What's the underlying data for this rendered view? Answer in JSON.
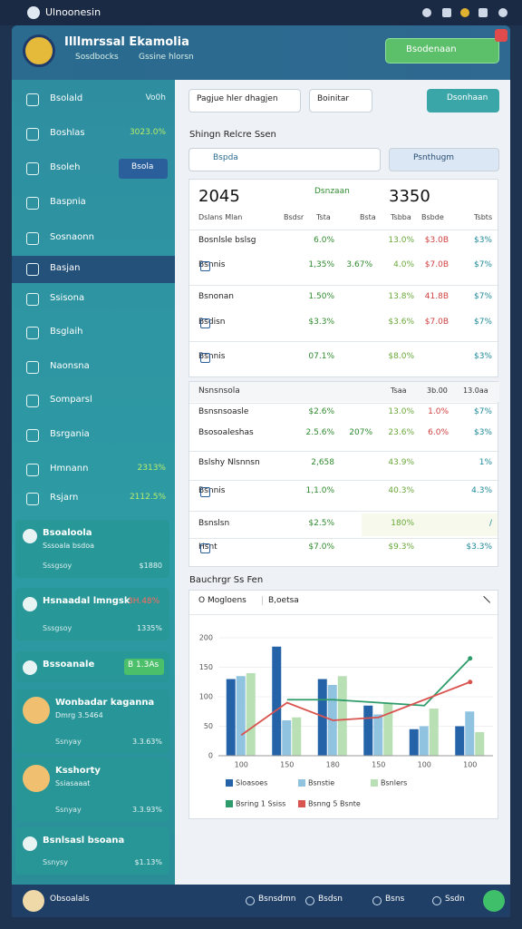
{
  "status_bar": {
    "title": "Ulnoonesin"
  },
  "header": {
    "title": "Illlmrssal Ekamolia",
    "links": [
      "Sosdbocks",
      "Gssine hlorsn"
    ],
    "button": "Bsodenaan"
  },
  "sidebar": {
    "items": [
      {
        "label": "Bsolald",
        "value": "Vo0h"
      },
      {
        "label": "Boshlas",
        "value": "3023.0%"
      },
      {
        "label": "Bsoleh",
        "value": "Bsola"
      },
      {
        "label": "Baspnia"
      },
      {
        "label": "Sosnaonn"
      },
      {
        "label": "Basjan"
      },
      {
        "label": "Ssisona"
      },
      {
        "label": "Bsglaih"
      },
      {
        "label": "Naonsna"
      },
      {
        "label": "Somparsl"
      },
      {
        "label": "Bsrgania"
      },
      {
        "label": "Hmnann",
        "value": "2313%"
      },
      {
        "label": "Rsjarn",
        "value": "2112.5%"
      }
    ],
    "cards": [
      {
        "title": "Bsoaloola",
        "sub": "Sssoala bsdoa",
        "meta": "Sssgsoy",
        "meta_value": "$1880"
      },
      {
        "title": "Hsnaadal lmngsk",
        "badge": "3H.48%",
        "meta": "Sssgsoy",
        "meta_value": "1335%"
      },
      {
        "title": "Bssoanale",
        "badge": "B 1.3As"
      },
      {
        "title": "Wonbadar kaganna",
        "sub": "Dmrg 3.5464",
        "meta": "Ssnyay",
        "meta_value": "3.3.63%"
      },
      {
        "title": "Ksshorty",
        "sub": "Ssiasaaat",
        "meta": "Ssnyay",
        "meta_value": "3.3.93%"
      },
      {
        "title": "Bsnlsasl bsoana",
        "meta": "Ssnysy",
        "meta_value": "$1.13%"
      }
    ]
  },
  "toolbar": {
    "dropdowns": [
      "Pagjue hler dhagjen",
      "Boinitar"
    ],
    "button": "Dsonhaan"
  },
  "section": {
    "title": "Shingn Relcre Ssen",
    "search": "Bspda",
    "filter": "Psnthugm"
  },
  "table1": {
    "header": [
      "2045",
      "Dsnzaan",
      "3350"
    ],
    "subheader": [
      "Dslans Mlan",
      "Bsdsr",
      "Tsta",
      "Bsta",
      "Tsbba",
      "Bsbde",
      "Tsbts"
    ],
    "rows": [
      [
        "Bosnlsle bslsg",
        "6.0%",
        null,
        "13.0%",
        "$3.0B",
        "$3%"
      ],
      [
        "Bsnnis",
        "1,35%",
        "3.67%",
        "4.0%",
        "$7.0B",
        "$7%"
      ],
      [
        "Bsnonan",
        "1.50%",
        null,
        "13.8%",
        "41.8B",
        "$7%"
      ],
      [
        "Bsdisn",
        "$3.3%",
        null,
        "$3.6%",
        "$7.0B",
        "$7%"
      ],
      [
        "Bsnnis",
        "07.1%",
        null,
        "$8.0%",
        null,
        "$3%"
      ]
    ]
  },
  "table2": {
    "header": [
      "Nsnsnsola",
      "Tsaa",
      "3b.00",
      "13.0aa"
    ],
    "rows": [
      [
        "Bsnsnsoasle",
        "$2.6%",
        null,
        "13.0%",
        "1.0%",
        "$7%"
      ],
      [
        "Bsosoaleshas",
        "2.5.6%",
        "207%",
        "23.6%",
        "6.0%",
        "$3%"
      ],
      [
        "Bslshy Nlsnnsn",
        "2,658",
        null,
        "43.9%",
        null,
        "1%"
      ],
      [
        "Bsnnis",
        "1,1.0%",
        null,
        "40.3%",
        null,
        "4.3%"
      ],
      [
        "Bsnslsn",
        "$2.5%",
        null,
        "180%",
        null,
        "/"
      ],
      [
        "Hsnt",
        "$7.0%",
        null,
        "$9.3%",
        null,
        "$3.3%"
      ]
    ]
  },
  "chart_data": {
    "type": "bar",
    "title": "Bauchrgr Ss Fen",
    "tabs": [
      "O Mogloens",
      "B,oetsa"
    ],
    "categories": [
      "100",
      "150",
      "180",
      "150",
      "100",
      "100"
    ],
    "ylim": [
      0,
      200
    ],
    "yticks": [
      0,
      50,
      100,
      150,
      200
    ],
    "series": [
      {
        "name": "Sloasoes",
        "color": "#2563a8",
        "values": [
          130,
          185,
          130,
          85,
          45,
          50
        ]
      },
      {
        "name": "Bsnstie",
        "color": "#8fc3e0",
        "values": [
          135,
          60,
          120,
          70,
          50,
          75
        ]
      },
      {
        "name": "Bsnlers",
        "color": "#b9e0b5",
        "values": [
          140,
          65,
          135,
          90,
          80,
          40
        ]
      },
      {
        "name": "Bsring 1 Ssiss",
        "type": "line",
        "color": "#2e9c6a",
        "values": [
          null,
          95,
          95,
          90,
          85,
          165
        ]
      },
      {
        "name": "Bsnng 5 Bsnte",
        "type": "line",
        "color": "#d9534f",
        "values": [
          35,
          90,
          60,
          65,
          95,
          125
        ]
      }
    ]
  },
  "footer": {
    "items": [
      "Obsoalals",
      "Bsnsdmn",
      "Bsdsn",
      "Bsns",
      "Ssdn"
    ]
  }
}
